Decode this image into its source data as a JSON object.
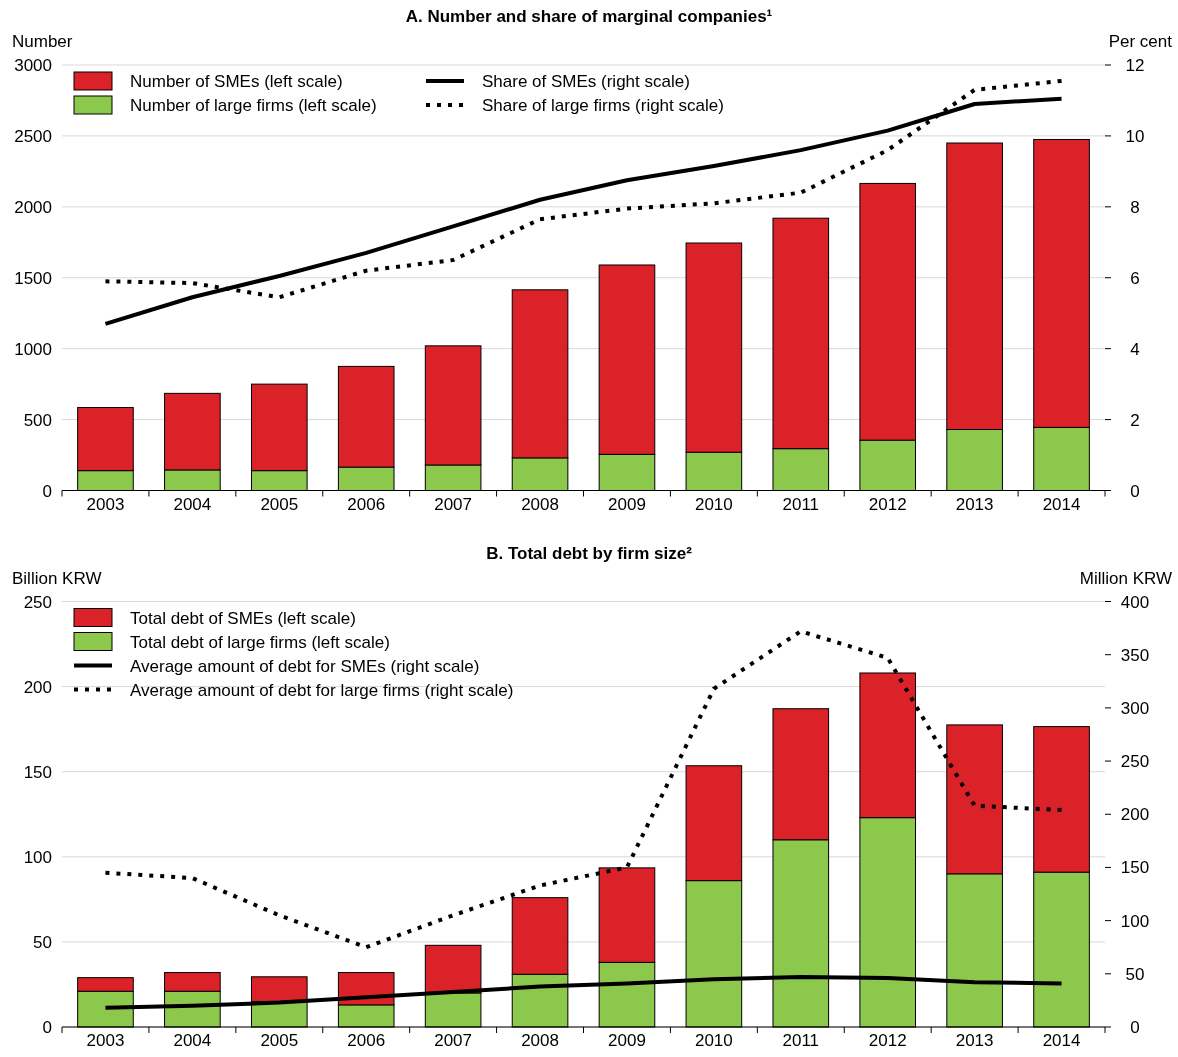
{
  "chart_data": [
    {
      "type": "bar",
      "title": "A. Number and share of marginal companies¹",
      "ylabel": "Number",
      "y2label": "Per cent",
      "categories": [
        "2003",
        "2004",
        "2005",
        "2006",
        "2007",
        "2008",
        "2009",
        "2010",
        "2011",
        "2012",
        "2013",
        "2014"
      ],
      "stacked": true,
      "grid": "y",
      "legend": "top left",
      "ylim": [
        0,
        3000
      ],
      "yticks": [
        0,
        500,
        1000,
        1500,
        2000,
        2500,
        3000
      ],
      "y2lim": [
        0,
        12
      ],
      "y2ticks": [
        0,
        2,
        4,
        6,
        8,
        10,
        12
      ],
      "series": [
        {
          "name": "Number of large firms (left scale)",
          "color": "#8cc84b",
          "values": [
            140,
            145,
            140,
            165,
            180,
            230,
            255,
            270,
            295,
            355,
            430,
            445
          ]
        },
        {
          "name": "Number of SMEs (left scale)",
          "color": "#dc2229",
          "values": [
            445,
            540,
            610,
            710,
            840,
            1185,
            1335,
            1475,
            1625,
            1810,
            2020,
            2030
          ]
        },
        {
          "name": "Share of SMEs (right scale)",
          "type": "line",
          "axis": "y2",
          "color": "#000000",
          "line_style": "solid",
          "values": [
            4.7,
            5.45,
            6.05,
            6.7,
            7.45,
            8.2,
            8.75,
            9.15,
            9.6,
            10.15,
            10.9,
            11.05
          ]
        },
        {
          "name": "Share of large firms (right scale)",
          "type": "line",
          "axis": "y2",
          "color": "#000000",
          "line_style": "dotted",
          "values": [
            5.9,
            5.85,
            5.45,
            6.2,
            6.5,
            7.65,
            7.95,
            8.1,
            8.4,
            9.6,
            11.3,
            11.55
          ]
        }
      ]
    },
    {
      "type": "bar",
      "title": "B. Total debt by firm size²",
      "ylabel": "Billion KRW",
      "y2label": "Million KRW",
      "categories": [
        "2003",
        "2004",
        "2005",
        "2006",
        "2007",
        "2008",
        "2009",
        "2010",
        "2011",
        "2012",
        "2013",
        "2014"
      ],
      "stacked": true,
      "grid": "y",
      "legend": "top left",
      "ylim": [
        0,
        250
      ],
      "yticks": [
        0,
        50,
        100,
        150,
        200,
        250
      ],
      "y2lim": [
        0,
        400
      ],
      "y2ticks": [
        0,
        50,
        100,
        150,
        200,
        250,
        300,
        350,
        400
      ],
      "series": [
        {
          "name": "Total debt of large firms (left scale)",
          "color": "#8cc84b",
          "values": [
            21,
            21,
            15,
            13,
            20,
            31,
            38,
            86,
            110,
            123,
            90,
            91
          ]
        },
        {
          "name": "Total debt of SMEs (left scale)",
          "color": "#dc2229",
          "values": [
            8,
            11,
            14.5,
            19,
            28,
            45,
            55.5,
            67.5,
            77,
            85,
            87.5,
            85.5
          ]
        },
        {
          "name": "Average amount of debt for SMEs (right scale)",
          "type": "line",
          "axis": "y2",
          "color": "#000000",
          "line_style": "solid",
          "values": [
            18,
            20,
            23,
            28,
            33,
            38,
            41,
            45,
            47,
            46,
            42,
            41
          ]
        },
        {
          "name": "Average amount of debt for large firms (right scale)",
          "type": "line",
          "axis": "y2",
          "color": "#000000",
          "line_style": "dotted",
          "values": [
            145,
            140,
            105,
            75,
            105,
            133,
            150,
            318,
            372,
            347,
            208,
            204
          ]
        }
      ]
    }
  ]
}
